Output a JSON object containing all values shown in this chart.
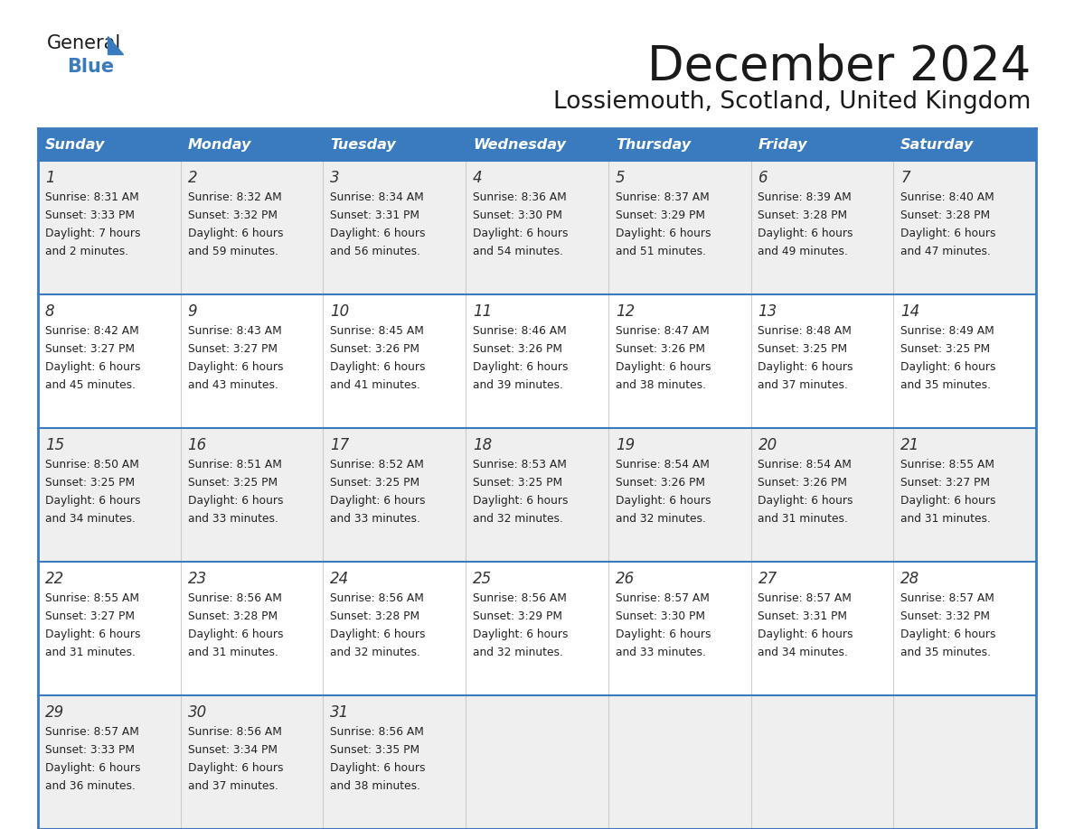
{
  "title": "December 2024",
  "subtitle": "Lossiemouth, Scotland, United Kingdom",
  "days_of_week": [
    "Sunday",
    "Monday",
    "Tuesday",
    "Wednesday",
    "Thursday",
    "Friday",
    "Saturday"
  ],
  "header_bg": "#3a7bbf",
  "header_text": "#FFFFFF",
  "row_bg_odd": "#EFEFEF",
  "row_bg_even": "#FFFFFF",
  "cell_text": "#222222",
  "border_color": "#3a7bbf",
  "title_color": "#1a1a1a",
  "logo_general_color": "#1a1a1a",
  "logo_blue_color": "#3a7bbf",
  "calendar_data": [
    [
      {
        "day": 1,
        "sunrise": "8:31 AM",
        "sunset": "3:33 PM",
        "daylight": "7 hours and 2 minutes."
      },
      {
        "day": 2,
        "sunrise": "8:32 AM",
        "sunset": "3:32 PM",
        "daylight": "6 hours and 59 minutes."
      },
      {
        "day": 3,
        "sunrise": "8:34 AM",
        "sunset": "3:31 PM",
        "daylight": "6 hours and 56 minutes."
      },
      {
        "day": 4,
        "sunrise": "8:36 AM",
        "sunset": "3:30 PM",
        "daylight": "6 hours and 54 minutes."
      },
      {
        "day": 5,
        "sunrise": "8:37 AM",
        "sunset": "3:29 PM",
        "daylight": "6 hours and 51 minutes."
      },
      {
        "day": 6,
        "sunrise": "8:39 AM",
        "sunset": "3:28 PM",
        "daylight": "6 hours and 49 minutes."
      },
      {
        "day": 7,
        "sunrise": "8:40 AM",
        "sunset": "3:28 PM",
        "daylight": "6 hours and 47 minutes."
      }
    ],
    [
      {
        "day": 8,
        "sunrise": "8:42 AM",
        "sunset": "3:27 PM",
        "daylight": "6 hours and 45 minutes."
      },
      {
        "day": 9,
        "sunrise": "8:43 AM",
        "sunset": "3:27 PM",
        "daylight": "6 hours and 43 minutes."
      },
      {
        "day": 10,
        "sunrise": "8:45 AM",
        "sunset": "3:26 PM",
        "daylight": "6 hours and 41 minutes."
      },
      {
        "day": 11,
        "sunrise": "8:46 AM",
        "sunset": "3:26 PM",
        "daylight": "6 hours and 39 minutes."
      },
      {
        "day": 12,
        "sunrise": "8:47 AM",
        "sunset": "3:26 PM",
        "daylight": "6 hours and 38 minutes."
      },
      {
        "day": 13,
        "sunrise": "8:48 AM",
        "sunset": "3:25 PM",
        "daylight": "6 hours and 37 minutes."
      },
      {
        "day": 14,
        "sunrise": "8:49 AM",
        "sunset": "3:25 PM",
        "daylight": "6 hours and 35 minutes."
      }
    ],
    [
      {
        "day": 15,
        "sunrise": "8:50 AM",
        "sunset": "3:25 PM",
        "daylight": "6 hours and 34 minutes."
      },
      {
        "day": 16,
        "sunrise": "8:51 AM",
        "sunset": "3:25 PM",
        "daylight": "6 hours and 33 minutes."
      },
      {
        "day": 17,
        "sunrise": "8:52 AM",
        "sunset": "3:25 PM",
        "daylight": "6 hours and 33 minutes."
      },
      {
        "day": 18,
        "sunrise": "8:53 AM",
        "sunset": "3:25 PM",
        "daylight": "6 hours and 32 minutes."
      },
      {
        "day": 19,
        "sunrise": "8:54 AM",
        "sunset": "3:26 PM",
        "daylight": "6 hours and 32 minutes."
      },
      {
        "day": 20,
        "sunrise": "8:54 AM",
        "sunset": "3:26 PM",
        "daylight": "6 hours and 31 minutes."
      },
      {
        "day": 21,
        "sunrise": "8:55 AM",
        "sunset": "3:27 PM",
        "daylight": "6 hours and 31 minutes."
      }
    ],
    [
      {
        "day": 22,
        "sunrise": "8:55 AM",
        "sunset": "3:27 PM",
        "daylight": "6 hours and 31 minutes."
      },
      {
        "day": 23,
        "sunrise": "8:56 AM",
        "sunset": "3:28 PM",
        "daylight": "6 hours and 31 minutes."
      },
      {
        "day": 24,
        "sunrise": "8:56 AM",
        "sunset": "3:28 PM",
        "daylight": "6 hours and 32 minutes."
      },
      {
        "day": 25,
        "sunrise": "8:56 AM",
        "sunset": "3:29 PM",
        "daylight": "6 hours and 32 minutes."
      },
      {
        "day": 26,
        "sunrise": "8:57 AM",
        "sunset": "3:30 PM",
        "daylight": "6 hours and 33 minutes."
      },
      {
        "day": 27,
        "sunrise": "8:57 AM",
        "sunset": "3:31 PM",
        "daylight": "6 hours and 34 minutes."
      },
      {
        "day": 28,
        "sunrise": "8:57 AM",
        "sunset": "3:32 PM",
        "daylight": "6 hours and 35 minutes."
      }
    ],
    [
      {
        "day": 29,
        "sunrise": "8:57 AM",
        "sunset": "3:33 PM",
        "daylight": "6 hours and 36 minutes."
      },
      {
        "day": 30,
        "sunrise": "8:56 AM",
        "sunset": "3:34 PM",
        "daylight": "6 hours and 37 minutes."
      },
      {
        "day": 31,
        "sunrise": "8:56 AM",
        "sunset": "3:35 PM",
        "daylight": "6 hours and 38 minutes."
      },
      null,
      null,
      null,
      null
    ]
  ]
}
